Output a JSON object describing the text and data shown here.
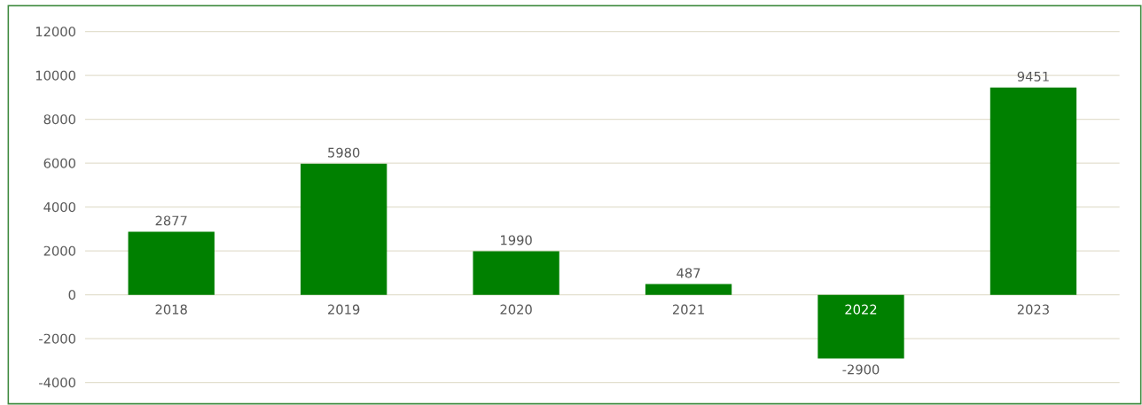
{
  "chart_data": {
    "type": "bar",
    "categories": [
      "2018",
      "2019",
      "2020",
      "2021",
      "2022",
      "2023"
    ],
    "values": [
      2877,
      5980,
      1990,
      487,
      -2900,
      9451
    ],
    "color": "#008000",
    "ylim": [
      -4000,
      12000
    ],
    "yticks": [
      -4000,
      -2000,
      0,
      2000,
      4000,
      6000,
      8000,
      10000,
      12000
    ],
    "grid": "y",
    "data_labels": true
  }
}
